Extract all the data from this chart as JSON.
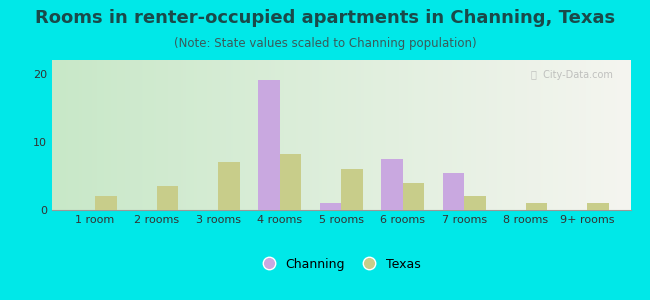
{
  "title": "Rooms in renter-occupied apartments in Channing, Texas",
  "subtitle": "(Note: State values scaled to Channing population)",
  "categories": [
    "1 room",
    "2 rooms",
    "3 rooms",
    "4 rooms",
    "5 rooms",
    "6 rooms",
    "7 rooms",
    "8 rooms",
    "9+ rooms"
  ],
  "channing_values": [
    0,
    0,
    0,
    19,
    1,
    7.5,
    5.5,
    0,
    0
  ],
  "texas_values": [
    2,
    3.5,
    7,
    8.2,
    6,
    4,
    2,
    1,
    1
  ],
  "channing_color": "#c9a8e0",
  "texas_color": "#c8cd8a",
  "background_outer": "#00e8e8",
  "background_inner_left": "#c8e8c8",
  "background_inner_right": "#f5f5f0",
  "ylim": [
    0,
    22
  ],
  "yticks": [
    0,
    10,
    20
  ],
  "bar_width": 0.35,
  "grid_color": "#dddddd",
  "title_fontsize": 13,
  "subtitle_fontsize": 8.5,
  "tick_fontsize": 8,
  "legend_fontsize": 9,
  "title_color": "#1a4a4a",
  "subtitle_color": "#3a5a5a",
  "tick_color": "#333333"
}
